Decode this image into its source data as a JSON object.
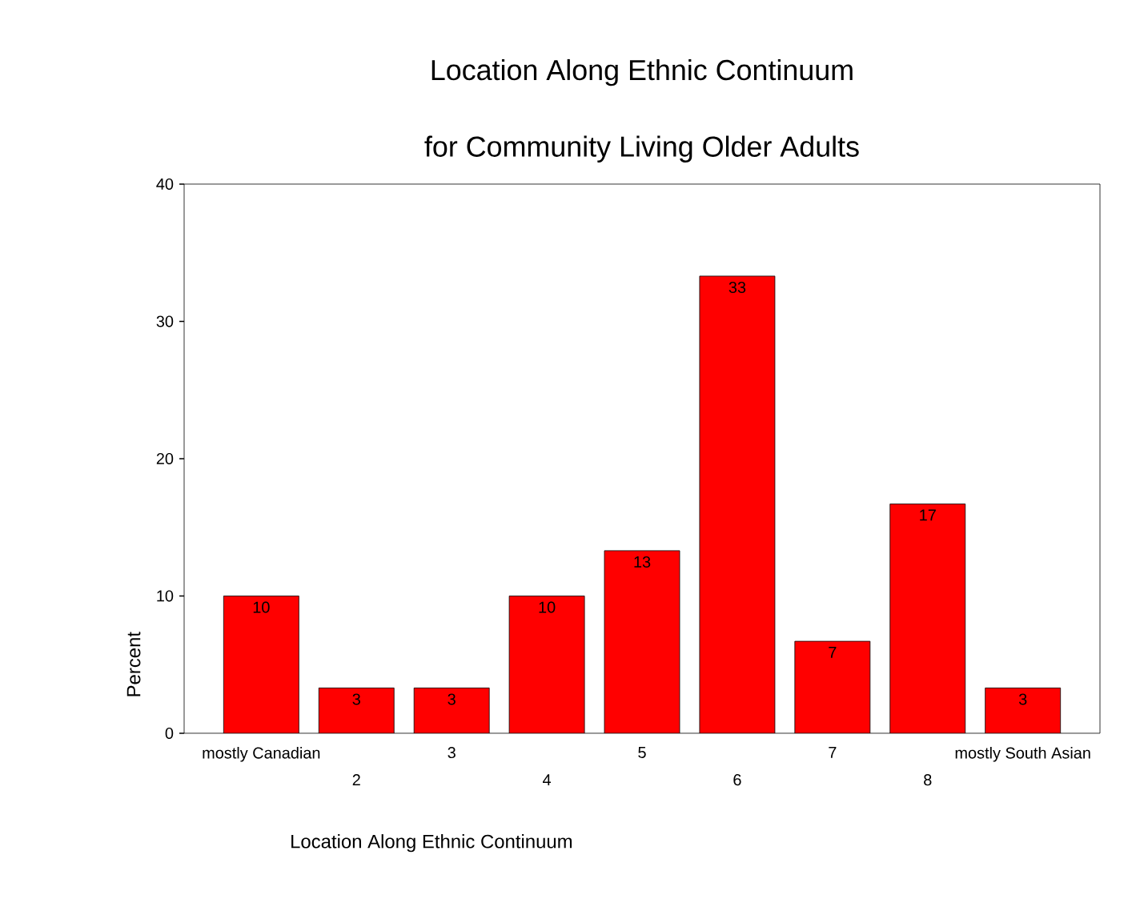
{
  "chart_data": {
    "type": "bar",
    "title": "Location Along Ethnic Continuum\nfor Community Living Older Adults",
    "xlabel": "Location Along Ethnic Continuum",
    "ylabel": "Percent",
    "categories": [
      "mostly Canadian",
      "2",
      "3",
      "4",
      "5",
      "6",
      "7",
      "8",
      "mostly South Asian"
    ],
    "values": [
      10,
      3.3,
      3.3,
      10,
      13.3,
      33.3,
      6.7,
      16.7,
      3.3
    ],
    "value_labels": [
      "10",
      "3",
      "3",
      "10",
      "13",
      "33",
      "7",
      "17",
      "3"
    ],
    "color": "#ff0000",
    "ylim": [
      0,
      40
    ],
    "yticks": [
      0,
      10,
      20,
      30,
      40
    ]
  }
}
